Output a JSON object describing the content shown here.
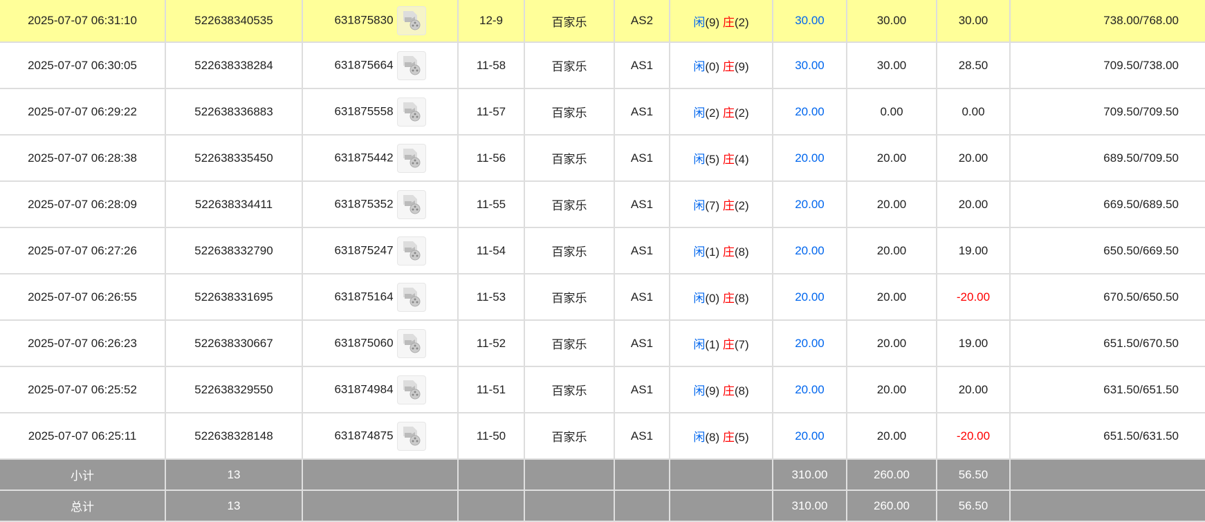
{
  "rows": [
    {
      "time": "2025-07-07 06:31:10",
      "bet_id": "522638340535",
      "round_id": "631875830",
      "shoe": "12-9",
      "game": "百家乐",
      "table": "AS2",
      "player": "闲",
      "player_pts": "(9)",
      "banker": "庄",
      "banker_pts": "(2)",
      "bet": "30.00",
      "valid": "30.00",
      "win": "30.00",
      "balance": "738.00/768.00",
      "highlight": true
    },
    {
      "time": "2025-07-07 06:30:05",
      "bet_id": "522638338284",
      "round_id": "631875664",
      "shoe": "11-58",
      "game": "百家乐",
      "table": "AS1",
      "player": "闲",
      "player_pts": "(0)",
      "banker": "庄",
      "banker_pts": "(9)",
      "bet": "30.00",
      "valid": "30.00",
      "win": "28.50",
      "balance": "709.50/738.00"
    },
    {
      "time": "2025-07-07 06:29:22",
      "bet_id": "522638336883",
      "round_id": "631875558",
      "shoe": "11-57",
      "game": "百家乐",
      "table": "AS1",
      "player": "闲",
      "player_pts": "(2)",
      "banker": "庄",
      "banker_pts": "(2)",
      "bet": "20.00",
      "valid": "0.00",
      "win": "0.00",
      "balance": "709.50/709.50"
    },
    {
      "time": "2025-07-07 06:28:38",
      "bet_id": "522638335450",
      "round_id": "631875442",
      "shoe": "11-56",
      "game": "百家乐",
      "table": "AS1",
      "player": "闲",
      "player_pts": "(5)",
      "banker": "庄",
      "banker_pts": "(4)",
      "bet": "20.00",
      "valid": "20.00",
      "win": "20.00",
      "balance": "689.50/709.50"
    },
    {
      "time": "2025-07-07 06:28:09",
      "bet_id": "522638334411",
      "round_id": "631875352",
      "shoe": "11-55",
      "game": "百家乐",
      "table": "AS1",
      "player": "闲",
      "player_pts": "(7)",
      "banker": "庄",
      "banker_pts": "(2)",
      "bet": "20.00",
      "valid": "20.00",
      "win": "20.00",
      "balance": "669.50/689.50"
    },
    {
      "time": "2025-07-07 06:27:26",
      "bet_id": "522638332790",
      "round_id": "631875247",
      "shoe": "11-54",
      "game": "百家乐",
      "table": "AS1",
      "player": "闲",
      "player_pts": "(1)",
      "banker": "庄",
      "banker_pts": "(8)",
      "bet": "20.00",
      "valid": "20.00",
      "win": "19.00",
      "balance": "650.50/669.50"
    },
    {
      "time": "2025-07-07 06:26:55",
      "bet_id": "522638331695",
      "round_id": "631875164",
      "shoe": "11-53",
      "game": "百家乐",
      "table": "AS1",
      "player": "闲",
      "player_pts": "(0)",
      "banker": "庄",
      "banker_pts": "(8)",
      "bet": "20.00",
      "valid": "20.00",
      "win": "-20.00",
      "balance": "670.50/650.50"
    },
    {
      "time": "2025-07-07 06:26:23",
      "bet_id": "522638330667",
      "round_id": "631875060",
      "shoe": "11-52",
      "game": "百家乐",
      "table": "AS1",
      "player": "闲",
      "player_pts": "(1)",
      "banker": "庄",
      "banker_pts": "(7)",
      "bet": "20.00",
      "valid": "20.00",
      "win": "19.00",
      "balance": "651.50/670.50"
    },
    {
      "time": "2025-07-07 06:25:52",
      "bet_id": "522638329550",
      "round_id": "631874984",
      "shoe": "11-51",
      "game": "百家乐",
      "table": "AS1",
      "player": "闲",
      "player_pts": "(9)",
      "banker": "庄",
      "banker_pts": "(8)",
      "bet": "20.00",
      "valid": "20.00",
      "win": "20.00",
      "balance": "631.50/651.50"
    },
    {
      "time": "2025-07-07 06:25:11",
      "bet_id": "522638328148",
      "round_id": "631874875",
      "shoe": "11-50",
      "game": "百家乐",
      "table": "AS1",
      "player": "闲",
      "player_pts": "(8)",
      "banker": "庄",
      "banker_pts": "(5)",
      "bet": "20.00",
      "valid": "20.00",
      "win": "-20.00",
      "balance": "651.50/631.50"
    }
  ],
  "summary": [
    {
      "label": "小计",
      "count": "13",
      "bet": "310.00",
      "valid": "260.00",
      "win": "56.50"
    },
    {
      "label": "总计",
      "count": "13",
      "bet": "310.00",
      "valid": "260.00",
      "win": "56.50"
    }
  ],
  "icons": {
    "replay": "video-replay-icon"
  },
  "colors": {
    "highlight": "#ffff99",
    "player": "#0066ee",
    "banker": "#ff0000",
    "negative": "#ff0000",
    "summary_bg": "#999999"
  }
}
